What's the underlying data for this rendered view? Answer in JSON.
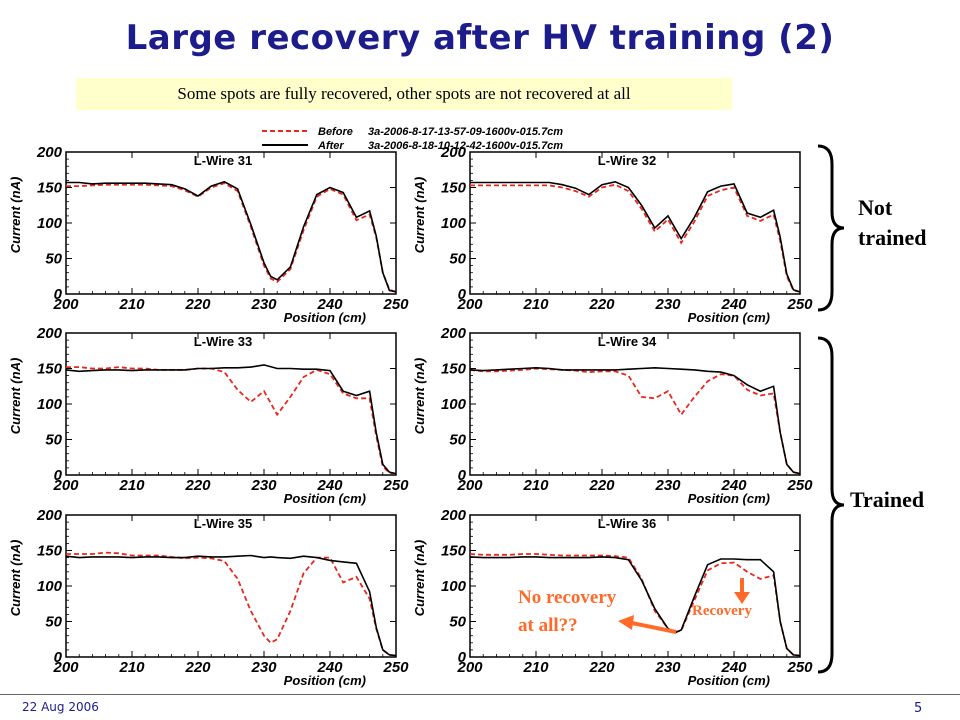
{
  "slide": {
    "title": "Large recovery after HV training (2)",
    "subtitle": "Some spots are fully recovered, other spots are not recovered at all",
    "label_not_trained": "Not trained",
    "label_not_trained_l1": "Not",
    "label_not_trained_l2": "trained",
    "label_trained": "Trained",
    "note_no_recovery_l1": "No recovery",
    "note_no_recovery_l2": "at all??",
    "note_recovery": "Recovery",
    "footer_date": "22 Aug 2006",
    "footer_page": "5"
  },
  "colors": {
    "title": "#1c1c8c",
    "before": "#e8281e",
    "after": "#000000",
    "note": "#ff6a28",
    "subtitle_bg": "#ffffcc"
  },
  "legend": [
    {
      "name": "Before",
      "run": "3a-2006-8-17-13-57-09-1600v-015.7cm",
      "style": "dashed",
      "color": "#e8281e"
    },
    {
      "name": "After",
      "run": "3a-2006-8-18-10-12-42-1600v-015.7cm",
      "style": "solid",
      "color": "#000000"
    }
  ],
  "chart_data": [
    {
      "type": "line",
      "title": "L-Wire 31",
      "xlabel": "Position (cm)",
      "ylabel": "Current (nA)",
      "xlim": [
        200,
        250
      ],
      "ylim": [
        0,
        200
      ],
      "xticks": [
        200,
        210,
        220,
        230,
        240,
        250
      ],
      "yticks": [
        0,
        50,
        100,
        150,
        200
      ],
      "series": [
        {
          "name": "Before",
          "x": [
            200,
            202,
            204,
            206,
            208,
            210,
            212,
            214,
            216,
            218,
            220,
            222,
            224,
            226,
            228,
            230,
            231,
            232,
            234,
            236,
            238,
            240,
            242,
            244,
            246,
            247,
            248,
            249,
            250
          ],
          "y": [
            152,
            152,
            153,
            154,
            154,
            154,
            154,
            153,
            152,
            146,
            137,
            150,
            156,
            145,
            95,
            40,
            22,
            17,
            35,
            90,
            137,
            148,
            140,
            104,
            112,
            80,
            30,
            6,
            3
          ]
        },
        {
          "name": "After",
          "x": [
            200,
            202,
            204,
            206,
            208,
            210,
            212,
            214,
            216,
            218,
            220,
            222,
            224,
            226,
            228,
            230,
            231,
            232,
            234,
            236,
            238,
            240,
            242,
            244,
            246,
            247,
            248,
            249,
            250
          ],
          "y": [
            157,
            157,
            155,
            156,
            156,
            156,
            156,
            155,
            154,
            148,
            138,
            152,
            158,
            148,
            98,
            44,
            25,
            20,
            38,
            95,
            140,
            150,
            143,
            108,
            117,
            82,
            30,
            5,
            3
          ]
        }
      ]
    },
    {
      "type": "line",
      "title": "L-Wire 32",
      "xlabel": "Position (cm)",
      "ylabel": "Current (nA)",
      "xlim": [
        200,
        250
      ],
      "ylim": [
        0,
        200
      ],
      "xticks": [
        200,
        210,
        220,
        230,
        240,
        250
      ],
      "yticks": [
        0,
        50,
        100,
        150,
        200
      ],
      "series": [
        {
          "name": "Before",
          "x": [
            200,
            202,
            204,
            206,
            208,
            210,
            212,
            214,
            216,
            218,
            220,
            222,
            224,
            226,
            228,
            230,
            232,
            234,
            236,
            238,
            240,
            242,
            244,
            246,
            247,
            248,
            249,
            250
          ],
          "y": [
            153,
            153,
            153,
            153,
            153,
            153,
            153,
            150,
            145,
            137,
            150,
            154,
            145,
            120,
            88,
            105,
            72,
            102,
            138,
            146,
            150,
            110,
            103,
            112,
            75,
            25,
            5,
            3
          ]
        },
        {
          "name": "After",
          "x": [
            200,
            202,
            204,
            206,
            208,
            210,
            212,
            214,
            216,
            218,
            220,
            222,
            224,
            226,
            228,
            230,
            232,
            234,
            236,
            238,
            240,
            242,
            244,
            246,
            247,
            248,
            249,
            250
          ],
          "y": [
            157,
            157,
            157,
            157,
            157,
            157,
            157,
            154,
            149,
            140,
            154,
            158,
            150,
            125,
            93,
            110,
            78,
            108,
            144,
            152,
            155,
            114,
            108,
            118,
            80,
            28,
            6,
            3
          ]
        }
      ]
    },
    {
      "type": "line",
      "title": "L-Wire 33",
      "xlabel": "Position (cm)",
      "ylabel": "Current (nA)",
      "xlim": [
        200,
        250
      ],
      "ylim": [
        0,
        200
      ],
      "xticks": [
        200,
        210,
        220,
        230,
        240,
        250
      ],
      "yticks": [
        0,
        50,
        100,
        150,
        200
      ],
      "series": [
        {
          "name": "Before",
          "x": [
            200,
            202,
            204,
            206,
            208,
            210,
            212,
            214,
            216,
            218,
            220,
            222,
            224,
            226,
            228,
            230,
            232,
            234,
            236,
            238,
            240,
            242,
            244,
            246,
            247,
            248,
            249,
            250
          ],
          "y": [
            152,
            152,
            150,
            150,
            152,
            150,
            150,
            148,
            148,
            148,
            150,
            150,
            145,
            120,
            103,
            118,
            85,
            110,
            138,
            148,
            142,
            115,
            108,
            108,
            55,
            12,
            3,
            2
          ]
        },
        {
          "name": "After",
          "x": [
            200,
            202,
            204,
            206,
            208,
            210,
            212,
            214,
            216,
            218,
            220,
            222,
            224,
            226,
            228,
            230,
            232,
            234,
            236,
            238,
            240,
            242,
            244,
            246,
            247,
            248,
            249,
            250
          ],
          "y": [
            148,
            146,
            147,
            148,
            148,
            147,
            148,
            148,
            148,
            148,
            150,
            150,
            151,
            151,
            152,
            155,
            150,
            150,
            149,
            149,
            147,
            118,
            112,
            118,
            60,
            15,
            4,
            2
          ]
        }
      ]
    },
    {
      "type": "line",
      "title": "L-Wire 34",
      "xlabel": "Position (cm)",
      "ylabel": "Current (nA)",
      "xlim": [
        200,
        250
      ],
      "ylim": [
        0,
        200
      ],
      "xticks": [
        200,
        210,
        220,
        230,
        240,
        250
      ],
      "yticks": [
        0,
        50,
        100,
        150,
        200
      ],
      "series": [
        {
          "name": "Before",
          "x": [
            200,
            202,
            204,
            206,
            208,
            210,
            212,
            214,
            216,
            218,
            220,
            222,
            224,
            226,
            228,
            230,
            232,
            234,
            236,
            238,
            240,
            242,
            244,
            246,
            247,
            248,
            249,
            250
          ],
          "y": [
            148,
            146,
            146,
            147,
            148,
            150,
            149,
            148,
            147,
            145,
            146,
            146,
            140,
            110,
            108,
            118,
            85,
            110,
            132,
            142,
            140,
            120,
            112,
            115,
            60,
            15,
            4,
            2
          ]
        },
        {
          "name": "After",
          "x": [
            200,
            202,
            204,
            206,
            208,
            210,
            212,
            214,
            216,
            218,
            220,
            222,
            224,
            226,
            228,
            230,
            232,
            234,
            236,
            238,
            240,
            242,
            244,
            246,
            247,
            248,
            249,
            250
          ],
          "y": [
            148,
            147,
            148,
            149,
            150,
            151,
            150,
            148,
            148,
            148,
            148,
            148,
            149,
            150,
            151,
            150,
            149,
            148,
            146,
            145,
            140,
            127,
            118,
            125,
            60,
            15,
            4,
            2
          ]
        }
      ]
    },
    {
      "type": "line",
      "title": "L-Wire 35",
      "xlabel": "Position (cm)",
      "ylabel": "Current (nA)",
      "xlim": [
        200,
        250
      ],
      "ylim": [
        0,
        200
      ],
      "xticks": [
        200,
        210,
        220,
        230,
        240,
        250
      ],
      "yticks": [
        0,
        50,
        100,
        150,
        200
      ],
      "series": [
        {
          "name": "Before",
          "x": [
            200,
            202,
            204,
            206,
            208,
            210,
            212,
            214,
            216,
            218,
            220,
            222,
            224,
            226,
            228,
            230,
            231,
            232,
            234,
            236,
            238,
            240,
            242,
            244,
            246,
            247,
            248,
            249,
            250
          ],
          "y": [
            145,
            145,
            145,
            147,
            146,
            143,
            143,
            143,
            141,
            139,
            140,
            139,
            135,
            110,
            65,
            30,
            20,
            25,
            65,
            118,
            140,
            140,
            105,
            113,
            82,
            40,
            10,
            3,
            2
          ]
        },
        {
          "name": "After",
          "x": [
            200,
            202,
            204,
            206,
            208,
            210,
            212,
            214,
            216,
            218,
            220,
            222,
            224,
            226,
            228,
            230,
            231,
            232,
            234,
            236,
            238,
            240,
            242,
            244,
            246,
            247,
            248,
            249,
            250
          ],
          "y": [
            142,
            140,
            141,
            141,
            141,
            140,
            141,
            141,
            140,
            140,
            142,
            141,
            141,
            142,
            143,
            140,
            141,
            140,
            139,
            142,
            140,
            136,
            134,
            132,
            92,
            42,
            10,
            3,
            2
          ]
        }
      ]
    },
    {
      "type": "line",
      "title": "L-Wire 36",
      "xlabel": "Position (cm)",
      "ylabel": "Current (nA)",
      "xlim": [
        200,
        250
      ],
      "ylim": [
        0,
        200
      ],
      "xticks": [
        200,
        210,
        220,
        230,
        240,
        250
      ],
      "yticks": [
        0,
        50,
        100,
        150,
        200
      ],
      "series": [
        {
          "name": "Before",
          "x": [
            200,
            202,
            204,
            206,
            208,
            210,
            212,
            214,
            216,
            218,
            220,
            222,
            224,
            226,
            228,
            230,
            231,
            232,
            234,
            236,
            238,
            240,
            242,
            244,
            246,
            247,
            248,
            249,
            250
          ],
          "y": [
            145,
            144,
            144,
            144,
            145,
            145,
            144,
            143,
            143,
            143,
            143,
            142,
            140,
            110,
            65,
            40,
            35,
            37,
            80,
            122,
            132,
            133,
            120,
            110,
            115,
            50,
            12,
            3,
            2
          ]
        },
        {
          "name": "After",
          "x": [
            200,
            202,
            204,
            206,
            208,
            210,
            212,
            214,
            216,
            218,
            220,
            222,
            224,
            226,
            228,
            230,
            231,
            232,
            234,
            236,
            238,
            240,
            242,
            244,
            246,
            247,
            248,
            249,
            250
          ],
          "y": [
            141,
            140,
            140,
            140,
            141,
            141,
            140,
            140,
            140,
            140,
            141,
            140,
            137,
            108,
            68,
            40,
            34,
            38,
            85,
            130,
            138,
            138,
            137,
            137,
            120,
            50,
            12,
            3,
            2
          ]
        }
      ]
    }
  ]
}
